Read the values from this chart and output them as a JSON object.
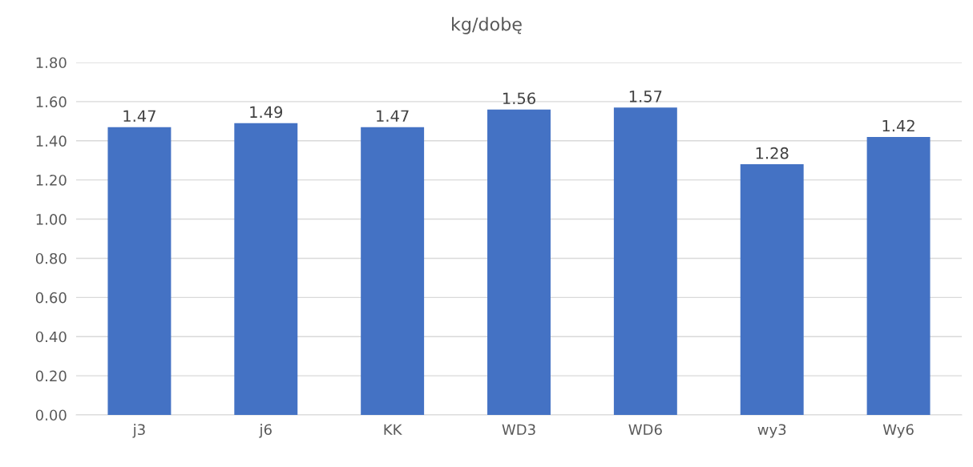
{
  "chart_data": {
    "type": "bar",
    "title": "kg/dobę",
    "categories": [
      "j3",
      "j6",
      "KK",
      "WD3",
      "WD6",
      "wy3",
      "Wy6"
    ],
    "values": [
      1.47,
      1.49,
      1.47,
      1.56,
      1.57,
      1.28,
      1.42
    ],
    "color": "#4472c4",
    "ylim": [
      0,
      1.8
    ],
    "yticks": [
      {
        "value": 0,
        "label": "0.00"
      },
      {
        "value": 0.2,
        "label": "0.20"
      },
      {
        "value": 0.4,
        "label": "0.40"
      },
      {
        "value": 0.6,
        "label": "0.60"
      },
      {
        "value": 0.8,
        "label": "0.80"
      },
      {
        "value": 1.0,
        "label": "1.00"
      },
      {
        "value": 1.2,
        "label": "1.20"
      },
      {
        "value": 1.4,
        "label": "1.40"
      },
      {
        "value": 1.6,
        "label": "1.60"
      },
      {
        "value": 1.8,
        "label": "1.80"
      }
    ],
    "grid": "y",
    "data_labels": true
  }
}
